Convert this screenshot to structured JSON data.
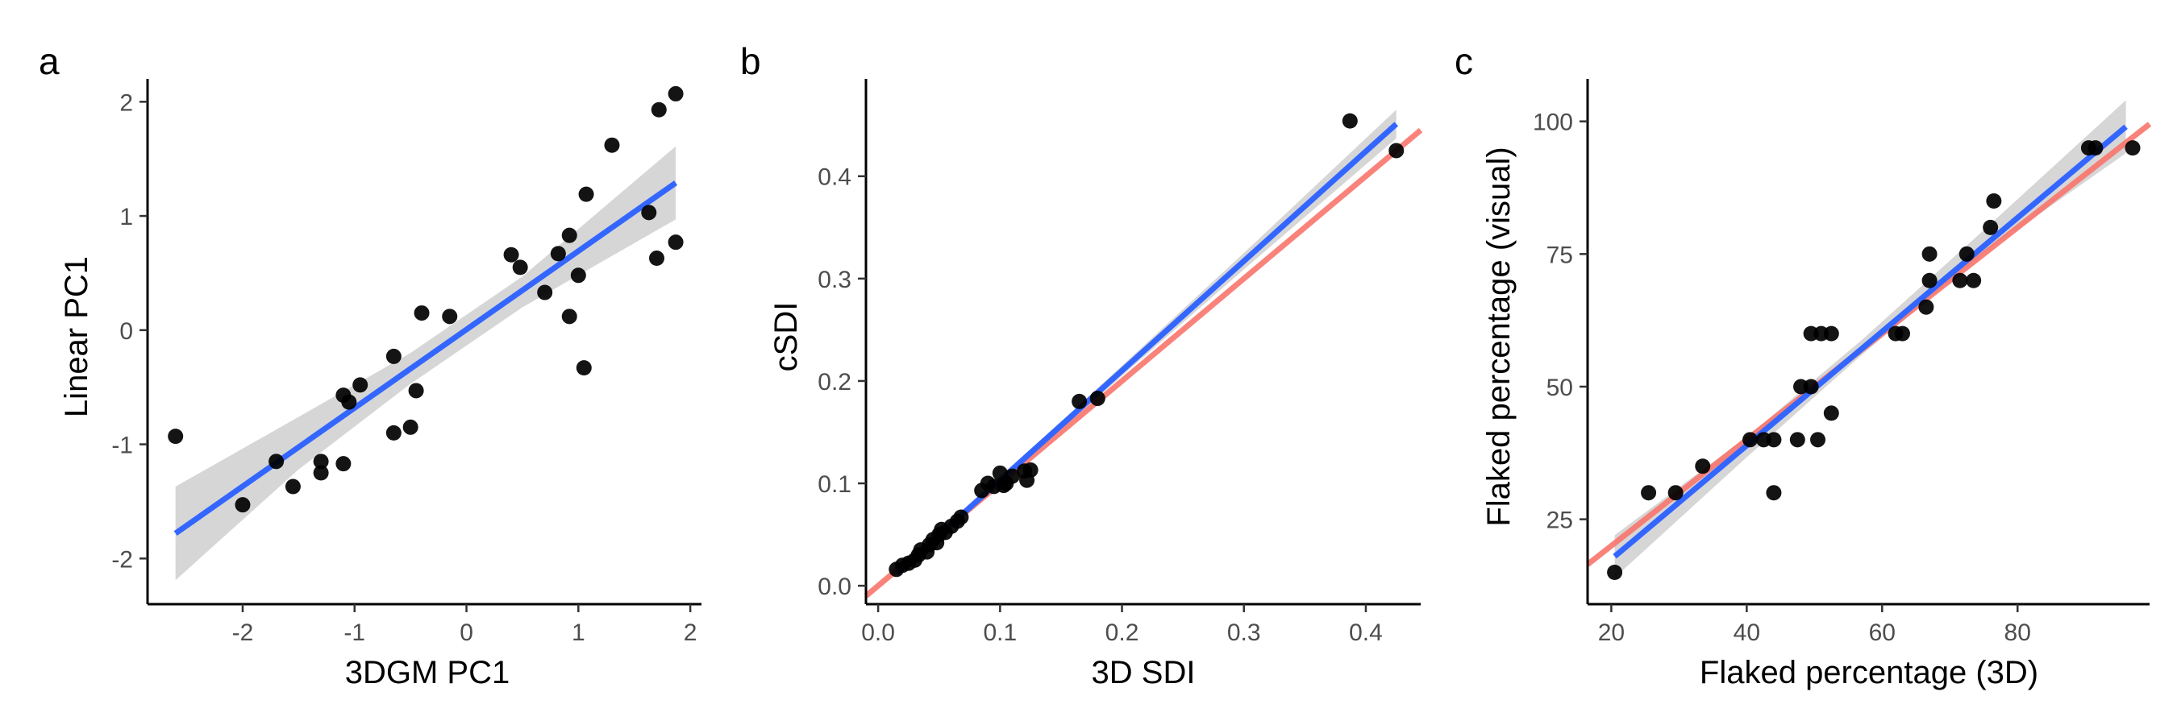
{
  "chart_data": [
    {
      "type": "scatter",
      "panel_label": "a",
      "xlabel": "3DGM PC1",
      "ylabel": "Linear PC1",
      "xlim": [
        -2.85,
        2.1
      ],
      "ylim": [
        -2.4,
        2.2
      ],
      "xticks": [
        -2,
        -1,
        0,
        1,
        2
      ],
      "xtick_labels": [
        "-2",
        "-1",
        "0",
        "1",
        "2"
      ],
      "yticks": [
        -2,
        -1,
        0,
        1,
        2
      ],
      "ytick_labels": [
        "-2",
        "-1",
        "0",
        "1",
        "2"
      ],
      "grid": false,
      "points": {
        "x": [
          -2.6,
          -2.0,
          -1.7,
          -1.55,
          -1.3,
          -1.3,
          -1.1,
          -1.1,
          -1.05,
          -0.95,
          -0.65,
          -0.65,
          -0.5,
          -0.45,
          -0.4,
          -0.15,
          0.4,
          0.48,
          0.7,
          0.82,
          0.92,
          0.92,
          1.0,
          1.05,
          1.07,
          1.3,
          1.63,
          1.7,
          1.72,
          1.87,
          1.87
        ],
        "y": [
          -0.93,
          -1.53,
          -1.15,
          -1.37,
          -1.15,
          -1.25,
          -1.17,
          -0.57,
          -0.63,
          -0.48,
          -0.23,
          -0.9,
          -0.85,
          -0.53,
          0.15,
          0.12,
          0.66,
          0.55,
          0.33,
          0.67,
          0.83,
          0.12,
          0.48,
          -0.33,
          1.19,
          1.62,
          1.03,
          0.63,
          1.93,
          2.07,
          0.77
        ]
      },
      "point_color": "#000000",
      "fit_lines": [
        {
          "color": "#3366ff",
          "x": [
            -2.6,
            1.87
          ],
          "y": [
            -1.78,
            1.29
          ],
          "band": {
            "x": [
              -2.6,
              -1.5,
              -0.5,
              0.5,
              1.87
            ],
            "lower": [
              -2.19,
              -1.22,
              -0.47,
              0.2,
              0.97
            ],
            "upper": [
              -1.37,
              -0.76,
              -0.2,
              0.47,
              1.61
            ]
          }
        }
      ]
    },
    {
      "type": "scatter",
      "panel_label": "b",
      "xlabel": "3D SDI",
      "ylabel": "cSDI",
      "xlim": [
        -0.01,
        0.445
      ],
      "ylim": [
        -0.018,
        0.495
      ],
      "xticks": [
        0,
        0.1,
        0.2,
        0.3,
        0.4
      ],
      "xtick_labels": [
        "0.0",
        "0.1",
        "0.2",
        "0.3",
        "0.4"
      ],
      "yticks": [
        0,
        0.1,
        0.2,
        0.3,
        0.4
      ],
      "ytick_labels": [
        "0.0",
        "0.1",
        "0.2",
        "0.3",
        "0.4"
      ],
      "grid": false,
      "points": {
        "x": [
          0.015,
          0.02,
          0.025,
          0.03,
          0.033,
          0.035,
          0.04,
          0.042,
          0.045,
          0.048,
          0.05,
          0.052,
          0.055,
          0.06,
          0.065,
          0.068,
          0.085,
          0.09,
          0.095,
          0.1,
          0.103,
          0.105,
          0.11,
          0.12,
          0.122,
          0.125,
          0.165,
          0.18,
          0.387,
          0.425
        ],
        "y": [
          0.016,
          0.02,
          0.022,
          0.025,
          0.03,
          0.035,
          0.033,
          0.04,
          0.045,
          0.042,
          0.05,
          0.055,
          0.052,
          0.058,
          0.063,
          0.067,
          0.093,
          0.1,
          0.097,
          0.11,
          0.098,
          0.1,
          0.107,
          0.112,
          0.103,
          0.113,
          0.18,
          0.183,
          0.454,
          0.425
        ]
      },
      "point_color": "#000000",
      "fit_lines": [
        {
          "color": "#f8766d",
          "x": [
            -0.01,
            0.445
          ],
          "y": [
            -0.01,
            0.445
          ]
        },
        {
          "color": "#3366ff",
          "x": [
            0.015,
            0.425
          ],
          "y": [
            0.012,
            0.451
          ],
          "band": {
            "x": [
              0.015,
              0.1,
              0.2,
              0.3,
              0.425
            ],
            "lower": [
              0.008,
              0.099,
              0.205,
              0.309,
              0.437
            ],
            "upper": [
              0.016,
              0.105,
              0.215,
              0.325,
              0.465
            ]
          }
        }
      ]
    },
    {
      "type": "scatter",
      "panel_label": "c",
      "xlabel": "Flaked percentage (3D)",
      "ylabel": "Flaked percentage (visual)",
      "xlim": [
        16.5,
        99.5
      ],
      "ylim": [
        9,
        108
      ],
      "xticks": [
        20,
        40,
        60,
        80
      ],
      "xtick_labels": [
        "20",
        "40",
        "60",
        "80"
      ],
      "yticks": [
        25,
        50,
        75,
        100
      ],
      "ytick_labels": [
        "25",
        "50",
        "75",
        "100"
      ],
      "grid": false,
      "points": {
        "x": [
          20.5,
          25.5,
          29.5,
          33.5,
          40.5,
          42.5,
          44,
          44,
          47.5,
          48,
          49.5,
          49.5,
          50.5,
          51,
          52.5,
          52.5,
          62,
          63,
          66.5,
          67,
          67,
          71.5,
          72.5,
          73.5,
          76,
          76.5,
          90.5,
          91.5,
          97
        ],
        "y": [
          15,
          30,
          30,
          35,
          40,
          40,
          30,
          40,
          40,
          50,
          60,
          50,
          40,
          60,
          60,
          45,
          60,
          60,
          65,
          75,
          70,
          70,
          75,
          70,
          80,
          85,
          95,
          95,
          95
        ]
      },
      "point_color": "#000000",
      "fit_lines": [
        {
          "color": "#f8766d",
          "x": [
            16.5,
            99.5
          ],
          "y": [
            16.5,
            99.5
          ]
        },
        {
          "color": "#3366ff",
          "x": [
            20.5,
            96
          ],
          "y": [
            18,
            99
          ],
          "band": {
            "x": [
              20.5,
              40,
              57,
              75,
              96
            ],
            "lower": [
              14,
              36.7,
              56,
              75.2,
              94
            ],
            "upper": [
              22,
              40.5,
              58.8,
              79.5,
              104
            ]
          }
        }
      ]
    }
  ]
}
